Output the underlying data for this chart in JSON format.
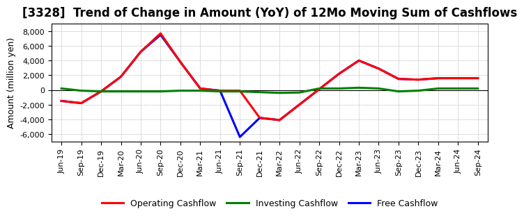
{
  "title": "[3328]  Trend of Change in Amount (YoY) of 12Mo Moving Sum of Cashflows",
  "ylabel": "Amount (million yen)",
  "x_labels": [
    "Jun-19",
    "Sep-19",
    "Dec-19",
    "Mar-20",
    "Jun-20",
    "Sep-20",
    "Dec-20",
    "Mar-21",
    "Jun-21",
    "Sep-21",
    "Dec-21",
    "Mar-22",
    "Jun-22",
    "Sep-22",
    "Dec-22",
    "Mar-23",
    "Jun-23",
    "Sep-23",
    "Dec-23",
    "Mar-24",
    "Jun-24",
    "Sep-24"
  ],
  "operating": [
    -1500,
    -1800,
    -200,
    1800,
    5200,
    7700,
    3800,
    200,
    -100,
    -100,
    -3800,
    -4100,
    -2000,
    100,
    2200,
    4000,
    2900,
    1500,
    1400,
    1600,
    1600,
    1600
  ],
  "investing": [
    200,
    -100,
    -200,
    -200,
    -200,
    -200,
    -100,
    -100,
    -200,
    -200,
    -300,
    -400,
    -350,
    200,
    200,
    300,
    200,
    -200,
    -100,
    200,
    200,
    200
  ],
  "free": [
    -1500,
    -1800,
    -200,
    1800,
    5200,
    7500,
    3800,
    200,
    -100,
    -6400,
    -3800,
    -4100,
    -2000,
    100,
    2200,
    4000,
    2900,
    1500,
    1400,
    1600,
    1600,
    1600
  ],
  "operating_color": "#ff0000",
  "investing_color": "#008000",
  "free_color": "#0000ff",
  "ylim": [
    -7000,
    9000
  ],
  "yticks": [
    -6000,
    -4000,
    -2000,
    0,
    2000,
    4000,
    6000,
    8000
  ],
  "background_color": "#ffffff",
  "grid_color": "#999999",
  "linewidth": 2.2,
  "title_fontsize": 12,
  "ylabel_fontsize": 9,
  "tick_fontsize": 8,
  "legend_fontsize": 9
}
